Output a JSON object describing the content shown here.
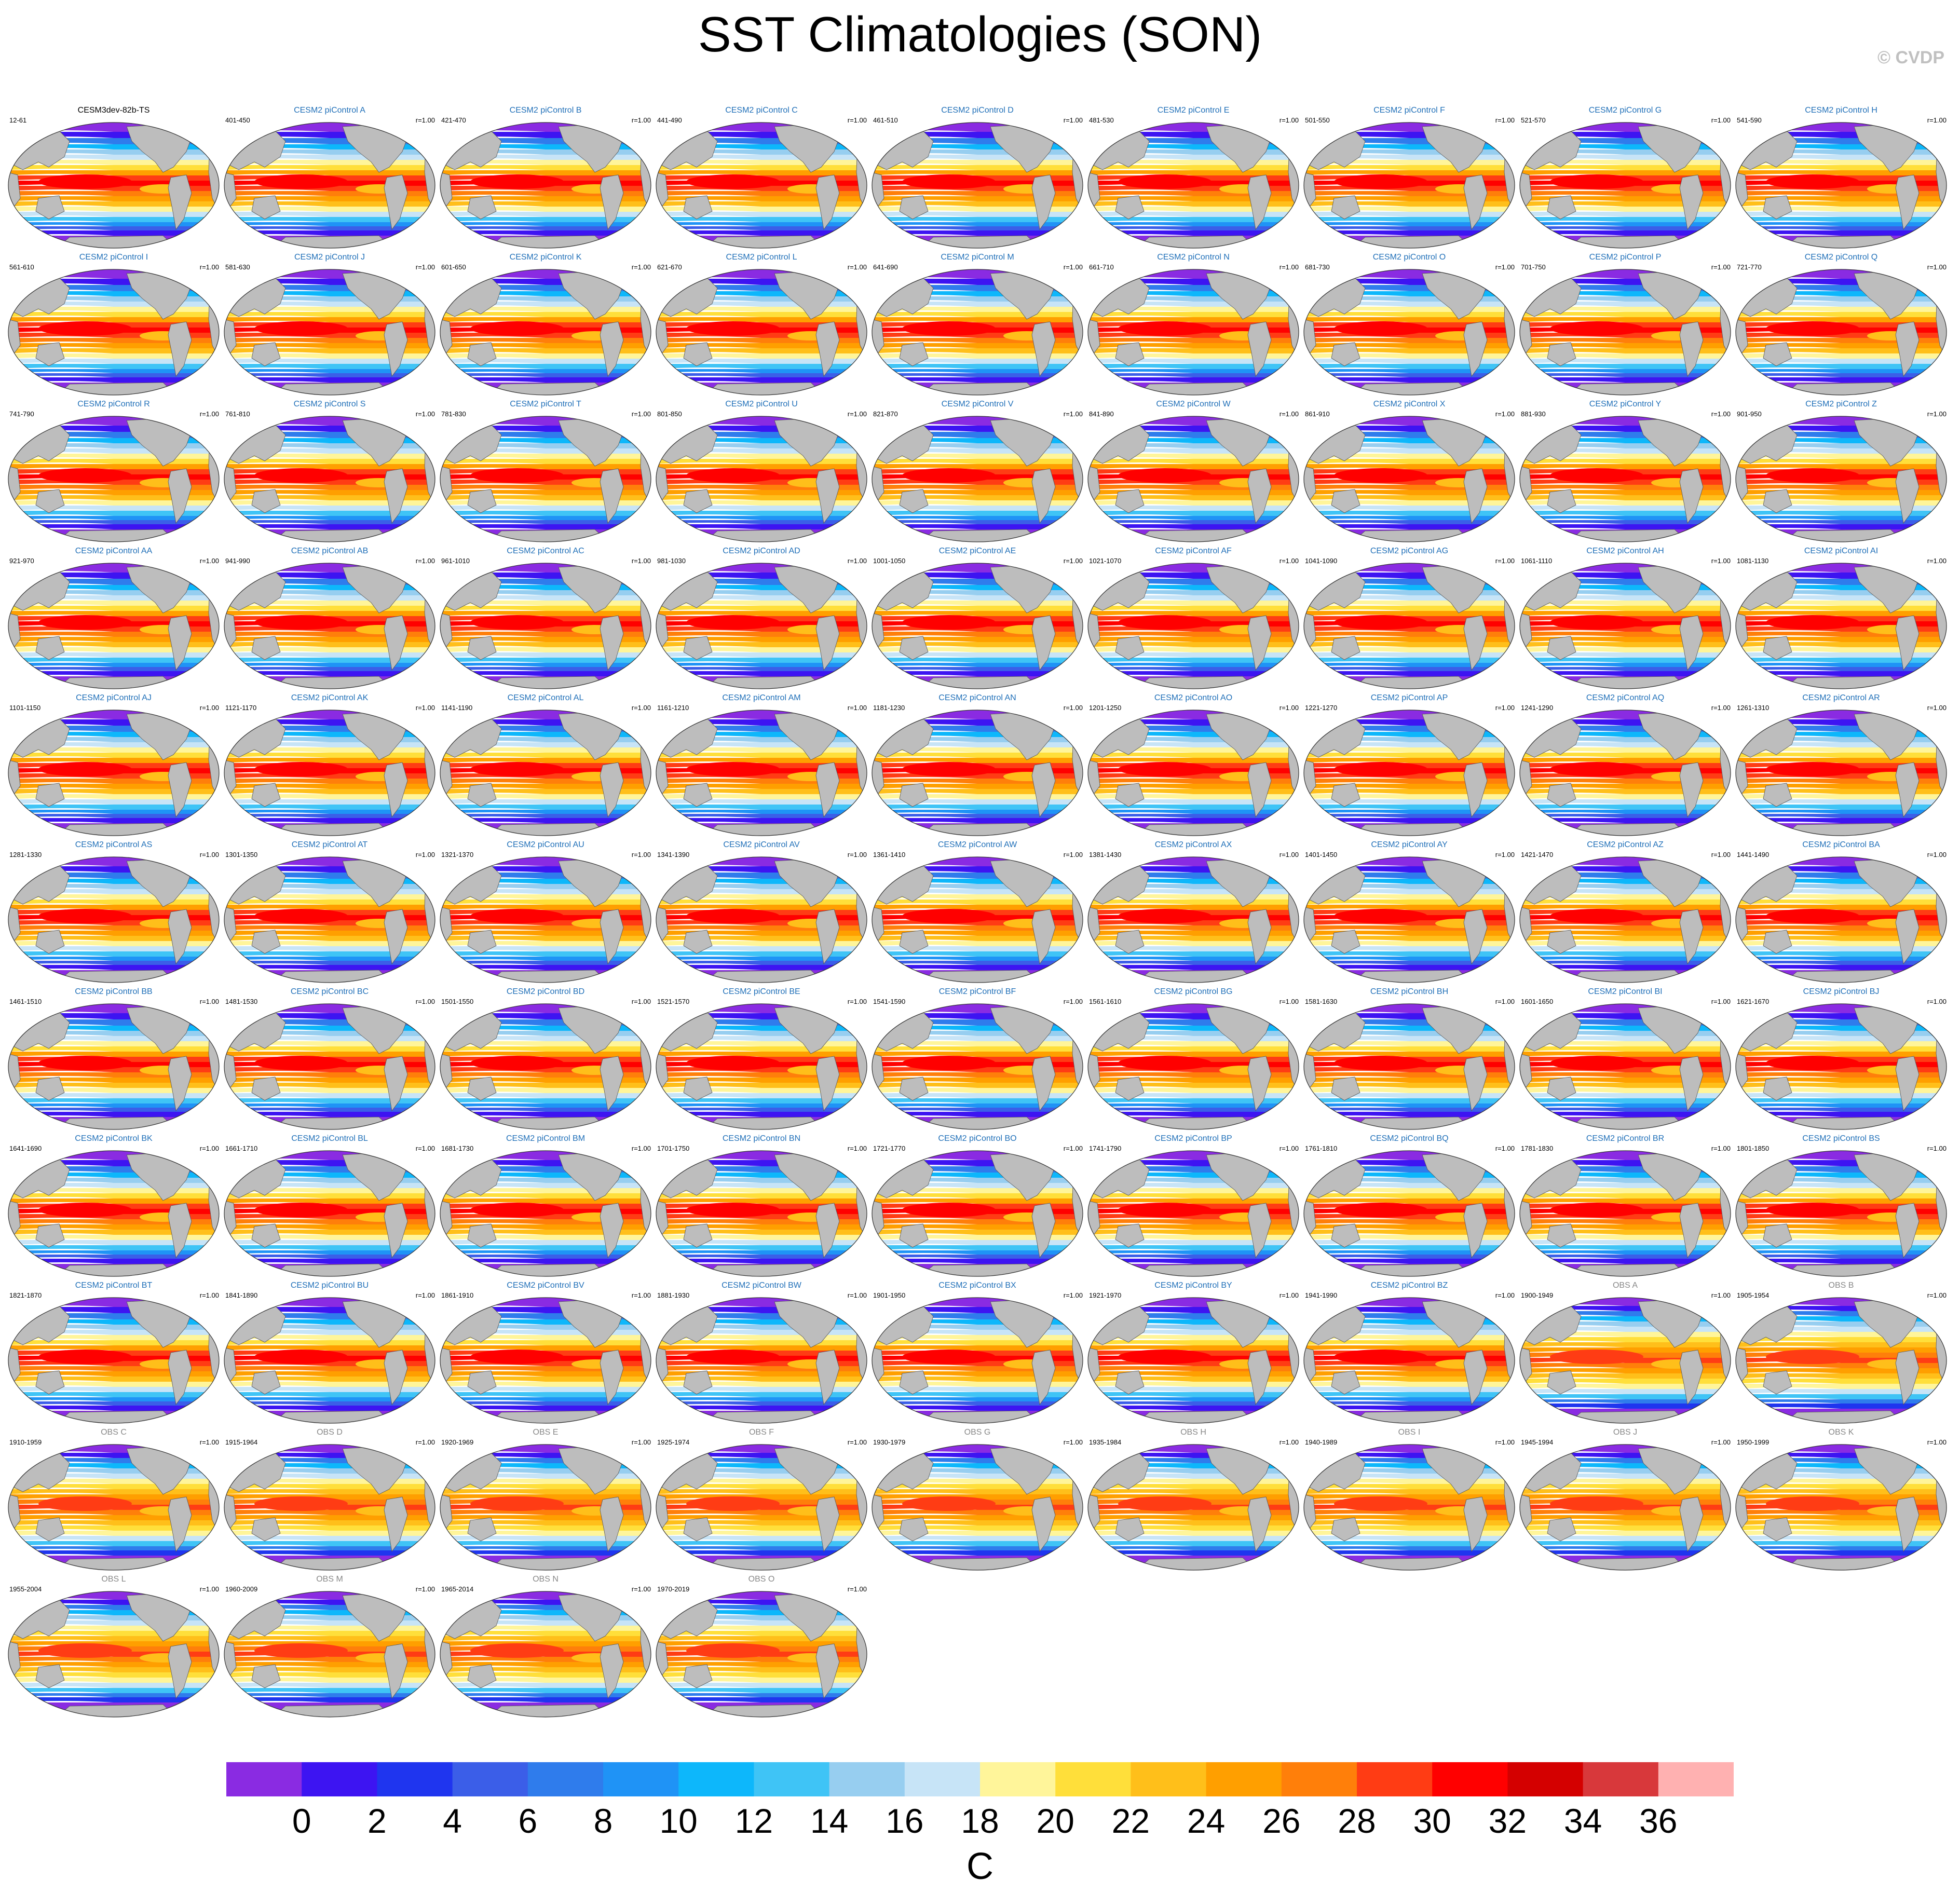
{
  "title": "SST Climatologies (SON)",
  "copyright": "© CVDP",
  "colors": {
    "land": "#bdbdbd",
    "title_model": "#1f6fb8",
    "title_obs": "#888888",
    "colorbar": [
      "#8a2be2",
      "#3d14f2",
      "#1f35ef",
      "#3b5ee8",
      "#2f7cec",
      "#1f93f6",
      "#0db7fb",
      "#3fc4f6",
      "#97cef0",
      "#c7e4f7",
      "#fff59a",
      "#ffdf3a",
      "#ffbf1a",
      "#ff9f00",
      "#ff7f0a",
      "#ff3c14",
      "#ff0000",
      "#d40000",
      "#d8383b",
      "#ffb1b1"
    ]
  },
  "chart_data": {
    "type": "heatmap",
    "title": "SST Climatologies (SON)",
    "variable": "SST",
    "season": "SON",
    "colorbar": {
      "unit": "C",
      "levels": [
        0,
        2,
        4,
        6,
        8,
        10,
        12,
        14,
        16,
        18,
        20,
        22,
        24,
        26,
        28,
        30,
        32,
        34,
        36
      ],
      "tick_labels": [
        "0",
        "2",
        "4",
        "6",
        "8",
        "10",
        "12",
        "14",
        "16",
        "18",
        "20",
        "22",
        "24",
        "26",
        "28",
        "30",
        "32",
        "34",
        "36"
      ]
    },
    "panels": [
      {
        "title": "CESM3dev-82b-TS",
        "years": "12-61",
        "r": "",
        "kind": "first"
      },
      {
        "title": "CESM2 piControl A",
        "years": "401-450",
        "r": "r=1.00",
        "kind": "model"
      },
      {
        "title": "CESM2 piControl B",
        "years": "421-470",
        "r": "r=1.00",
        "kind": "model"
      },
      {
        "title": "CESM2 piControl C",
        "years": "441-490",
        "r": "r=1.00",
        "kind": "model"
      },
      {
        "title": "CESM2 piControl D",
        "years": "461-510",
        "r": "r=1.00",
        "kind": "model"
      },
      {
        "title": "CESM2 piControl E",
        "years": "481-530",
        "r": "r=1.00",
        "kind": "model"
      },
      {
        "title": "CESM2 piControl F",
        "years": "501-550",
        "r": "r=1.00",
        "kind": "model"
      },
      {
        "title": "CESM2 piControl G",
        "years": "521-570",
        "r": "r=1.00",
        "kind": "model"
      },
      {
        "title": "CESM2 piControl H",
        "years": "541-590",
        "r": "r=1.00",
        "kind": "model"
      },
      {
        "title": "CESM2 piControl I",
        "years": "561-610",
        "r": "r=1.00",
        "kind": "model"
      },
      {
        "title": "CESM2 piControl J",
        "years": "581-630",
        "r": "r=1.00",
        "kind": "model"
      },
      {
        "title": "CESM2 piControl K",
        "years": "601-650",
        "r": "r=1.00",
        "kind": "model"
      },
      {
        "title": "CESM2 piControl L",
        "years": "621-670",
        "r": "r=1.00",
        "kind": "model"
      },
      {
        "title": "CESM2 piControl M",
        "years": "641-690",
        "r": "r=1.00",
        "kind": "model"
      },
      {
        "title": "CESM2 piControl N",
        "years": "661-710",
        "r": "r=1.00",
        "kind": "model"
      },
      {
        "title": "CESM2 piControl O",
        "years": "681-730",
        "r": "r=1.00",
        "kind": "model"
      },
      {
        "title": "CESM2 piControl P",
        "years": "701-750",
        "r": "r=1.00",
        "kind": "model"
      },
      {
        "title": "CESM2 piControl Q",
        "years": "721-770",
        "r": "r=1.00",
        "kind": "model"
      },
      {
        "title": "CESM2 piControl R",
        "years": "741-790",
        "r": "r=1.00",
        "kind": "model"
      },
      {
        "title": "CESM2 piControl S",
        "years": "761-810",
        "r": "r=1.00",
        "kind": "model"
      },
      {
        "title": "CESM2 piControl T",
        "years": "781-830",
        "r": "r=1.00",
        "kind": "model"
      },
      {
        "title": "CESM2 piControl U",
        "years": "801-850",
        "r": "r=1.00",
        "kind": "model"
      },
      {
        "title": "CESM2 piControl V",
        "years": "821-870",
        "r": "r=1.00",
        "kind": "model"
      },
      {
        "title": "CESM2 piControl W",
        "years": "841-890",
        "r": "r=1.00",
        "kind": "model"
      },
      {
        "title": "CESM2 piControl X",
        "years": "861-910",
        "r": "r=1.00",
        "kind": "model"
      },
      {
        "title": "CESM2 piControl Y",
        "years": "881-930",
        "r": "r=1.00",
        "kind": "model"
      },
      {
        "title": "CESM2 piControl Z",
        "years": "901-950",
        "r": "r=1.00",
        "kind": "model"
      },
      {
        "title": "CESM2 piControl AA",
        "years": "921-970",
        "r": "r=1.00",
        "kind": "model"
      },
      {
        "title": "CESM2 piControl AB",
        "years": "941-990",
        "r": "r=1.00",
        "kind": "model"
      },
      {
        "title": "CESM2 piControl AC",
        "years": "961-1010",
        "r": "r=1.00",
        "kind": "model"
      },
      {
        "title": "CESM2 piControl AD",
        "years": "981-1030",
        "r": "r=1.00",
        "kind": "model"
      },
      {
        "title": "CESM2 piControl AE",
        "years": "1001-1050",
        "r": "r=1.00",
        "kind": "model"
      },
      {
        "title": "CESM2 piControl AF",
        "years": "1021-1070",
        "r": "r=1.00",
        "kind": "model"
      },
      {
        "title": "CESM2 piControl AG",
        "years": "1041-1090",
        "r": "r=1.00",
        "kind": "model"
      },
      {
        "title": "CESM2 piControl AH",
        "years": "1061-1110",
        "r": "r=1.00",
        "kind": "model"
      },
      {
        "title": "CESM2 piControl AI",
        "years": "1081-1130",
        "r": "r=1.00",
        "kind": "model"
      },
      {
        "title": "CESM2 piControl AJ",
        "years": "1101-1150",
        "r": "r=1.00",
        "kind": "model"
      },
      {
        "title": "CESM2 piControl AK",
        "years": "1121-1170",
        "r": "r=1.00",
        "kind": "model"
      },
      {
        "title": "CESM2 piControl AL",
        "years": "1141-1190",
        "r": "r=1.00",
        "kind": "model"
      },
      {
        "title": "CESM2 piControl AM",
        "years": "1161-1210",
        "r": "r=1.00",
        "kind": "model"
      },
      {
        "title": "CESM2 piControl AN",
        "years": "1181-1230",
        "r": "r=1.00",
        "kind": "model"
      },
      {
        "title": "CESM2 piControl AO",
        "years": "1201-1250",
        "r": "r=1.00",
        "kind": "model"
      },
      {
        "title": "CESM2 piControl AP",
        "years": "1221-1270",
        "r": "r=1.00",
        "kind": "model"
      },
      {
        "title": "CESM2 piControl AQ",
        "years": "1241-1290",
        "r": "r=1.00",
        "kind": "model"
      },
      {
        "title": "CESM2 piControl AR",
        "years": "1261-1310",
        "r": "r=1.00",
        "kind": "model"
      },
      {
        "title": "CESM2 piControl AS",
        "years": "1281-1330",
        "r": "r=1.00",
        "kind": "model"
      },
      {
        "title": "CESM2 piControl AT",
        "years": "1301-1350",
        "r": "r=1.00",
        "kind": "model"
      },
      {
        "title": "CESM2 piControl AU",
        "years": "1321-1370",
        "r": "r=1.00",
        "kind": "model"
      },
      {
        "title": "CESM2 piControl AV",
        "years": "1341-1390",
        "r": "r=1.00",
        "kind": "model"
      },
      {
        "title": "CESM2 piControl AW",
        "years": "1361-1410",
        "r": "r=1.00",
        "kind": "model"
      },
      {
        "title": "CESM2 piControl AX",
        "years": "1381-1430",
        "r": "r=1.00",
        "kind": "model"
      },
      {
        "title": "CESM2 piControl AY",
        "years": "1401-1450",
        "r": "r=1.00",
        "kind": "model"
      },
      {
        "title": "CESM2 piControl AZ",
        "years": "1421-1470",
        "r": "r=1.00",
        "kind": "model"
      },
      {
        "title": "CESM2 piControl BA",
        "years": "1441-1490",
        "r": "r=1.00",
        "kind": "model"
      },
      {
        "title": "CESM2 piControl BB",
        "years": "1461-1510",
        "r": "r=1.00",
        "kind": "model"
      },
      {
        "title": "CESM2 piControl BC",
        "years": "1481-1530",
        "r": "r=1.00",
        "kind": "model"
      },
      {
        "title": "CESM2 piControl BD",
        "years": "1501-1550",
        "r": "r=1.00",
        "kind": "model"
      },
      {
        "title": "CESM2 piControl BE",
        "years": "1521-1570",
        "r": "r=1.00",
        "kind": "model"
      },
      {
        "title": "CESM2 piControl BF",
        "years": "1541-1590",
        "r": "r=1.00",
        "kind": "model"
      },
      {
        "title": "CESM2 piControl BG",
        "years": "1561-1610",
        "r": "r=1.00",
        "kind": "model"
      },
      {
        "title": "CESM2 piControl BH",
        "years": "1581-1630",
        "r": "r=1.00",
        "kind": "model"
      },
      {
        "title": "CESM2 piControl BI",
        "years": "1601-1650",
        "r": "r=1.00",
        "kind": "model"
      },
      {
        "title": "CESM2 piControl BJ",
        "years": "1621-1670",
        "r": "r=1.00",
        "kind": "model"
      },
      {
        "title": "CESM2 piControl BK",
        "years": "1641-1690",
        "r": "r=1.00",
        "kind": "model"
      },
      {
        "title": "CESM2 piControl BL",
        "years": "1661-1710",
        "r": "r=1.00",
        "kind": "model"
      },
      {
        "title": "CESM2 piControl BM",
        "years": "1681-1730",
        "r": "r=1.00",
        "kind": "model"
      },
      {
        "title": "CESM2 piControl BN",
        "years": "1701-1750",
        "r": "r=1.00",
        "kind": "model"
      },
      {
        "title": "CESM2 piControl BO",
        "years": "1721-1770",
        "r": "r=1.00",
        "kind": "model"
      },
      {
        "title": "CESM2 piControl BP",
        "years": "1741-1790",
        "r": "r=1.00",
        "kind": "model"
      },
      {
        "title": "CESM2 piControl BQ",
        "years": "1761-1810",
        "r": "r=1.00",
        "kind": "model"
      },
      {
        "title": "CESM2 piControl BR",
        "years": "1781-1830",
        "r": "r=1.00",
        "kind": "model"
      },
      {
        "title": "CESM2 piControl BS",
        "years": "1801-1850",
        "r": "r=1.00",
        "kind": "model"
      },
      {
        "title": "CESM2 piControl BT",
        "years": "1821-1870",
        "r": "r=1.00",
        "kind": "model"
      },
      {
        "title": "CESM2 piControl BU",
        "years": "1841-1890",
        "r": "r=1.00",
        "kind": "model"
      },
      {
        "title": "CESM2 piControl BV",
        "years": "1861-1910",
        "r": "r=1.00",
        "kind": "model"
      },
      {
        "title": "CESM2 piControl BW",
        "years": "1881-1930",
        "r": "r=1.00",
        "kind": "model"
      },
      {
        "title": "CESM2 piControl BX",
        "years": "1901-1950",
        "r": "r=1.00",
        "kind": "model"
      },
      {
        "title": "CESM2 piControl BY",
        "years": "1921-1970",
        "r": "r=1.00",
        "kind": "model"
      },
      {
        "title": "CESM2 piControl BZ",
        "years": "1941-1990",
        "r": "r=1.00",
        "kind": "model"
      },
      {
        "title": "OBS A",
        "years": "1900-1949",
        "r": "r=1.00",
        "kind": "obs"
      },
      {
        "title": "OBS B",
        "years": "1905-1954",
        "r": "r=1.00",
        "kind": "obs"
      },
      {
        "title": "OBS C",
        "years": "1910-1959",
        "r": "r=1.00",
        "kind": "obs"
      },
      {
        "title": "OBS D",
        "years": "1915-1964",
        "r": "r=1.00",
        "kind": "obs"
      },
      {
        "title": "OBS E",
        "years": "1920-1969",
        "r": "r=1.00",
        "kind": "obs"
      },
      {
        "title": "OBS F",
        "years": "1925-1974",
        "r": "r=1.00",
        "kind": "obs"
      },
      {
        "title": "OBS G",
        "years": "1930-1979",
        "r": "r=1.00",
        "kind": "obs"
      },
      {
        "title": "OBS H",
        "years": "1935-1984",
        "r": "r=1.00",
        "kind": "obs"
      },
      {
        "title": "OBS I",
        "years": "1940-1989",
        "r": "r=1.00",
        "kind": "obs"
      },
      {
        "title": "OBS J",
        "years": "1945-1994",
        "r": "r=1.00",
        "kind": "obs"
      },
      {
        "title": "OBS K",
        "years": "1950-1999",
        "r": "r=1.00",
        "kind": "obs"
      },
      {
        "title": "OBS L",
        "years": "1955-2004",
        "r": "r=1.00",
        "kind": "obs"
      },
      {
        "title": "OBS M",
        "years": "1960-2009",
        "r": "r=1.00",
        "kind": "obs"
      },
      {
        "title": "OBS N",
        "years": "1965-2014",
        "r": "r=1.00",
        "kind": "obs"
      },
      {
        "title": "OBS O",
        "years": "1970-2019",
        "r": "r=1.00",
        "kind": "obs"
      }
    ]
  }
}
